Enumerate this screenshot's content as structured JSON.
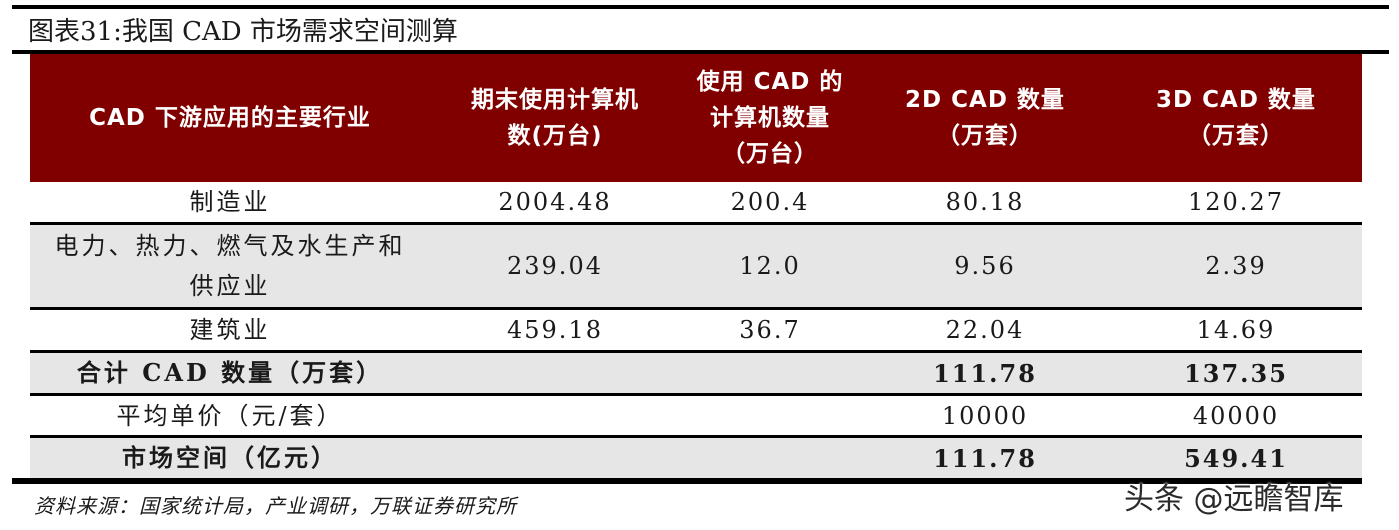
{
  "title": "图表31:我国 CAD 市场需求空间测算",
  "table": {
    "header_bg": "#800000",
    "headers": [
      [
        "CAD 下游应用的主要行业"
      ],
      [
        "期末使用计算机",
        "数(万台)"
      ],
      [
        "使用 CAD 的",
        "计算机数量",
        "（万台）"
      ],
      [
        "2D CAD 数量",
        "（万套）"
      ],
      [
        "3D CAD 数量",
        "（万套）"
      ]
    ],
    "rows": [
      {
        "industry": [
          "制造业"
        ],
        "computers": "2004.48",
        "cad_computers": "200.4",
        "cad_2d": "80.18",
        "cad_3d": "120.27"
      },
      {
        "industry": [
          "电力、热力、燃气及水生产和",
          "供应业"
        ],
        "computers": "239.04",
        "cad_computers": "12.0",
        "cad_2d": "9.56",
        "cad_3d": "2.39"
      },
      {
        "industry": [
          "建筑业"
        ],
        "computers": "459.18",
        "cad_computers": "36.7",
        "cad_2d": "22.04",
        "cad_3d": "14.69"
      }
    ],
    "summary": [
      {
        "label": "合计 CAD 数量（万套）",
        "cad_2d": "111.78",
        "cad_3d": "137.35",
        "bold": true
      },
      {
        "label": "平均单价（元/套）",
        "cad_2d": "10000",
        "cad_3d": "40000",
        "bold": false
      },
      {
        "label": "市场空间（亿元）",
        "cad_2d": "111.78",
        "cad_3d": "549.41",
        "bold": true
      }
    ]
  },
  "source": "资料来源：国家统计局，产业调研，万联证券研究所",
  "watermark": "头条 @远瞻智库"
}
